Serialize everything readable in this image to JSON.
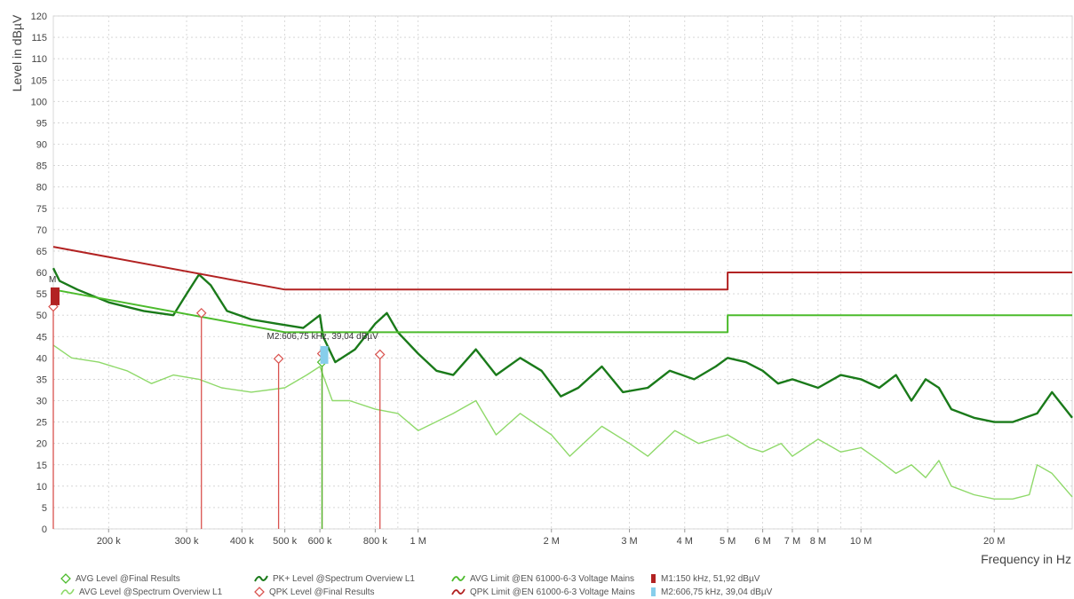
{
  "chart_data": {
    "type": "line",
    "x_scale": "log",
    "xlim": [
      150000,
      30000000
    ],
    "ylim": [
      0,
      120
    ],
    "xlabel": "Frequency in Hz",
    "ylabel": "Level in dBµV",
    "y_ticks": [
      0,
      5,
      10,
      15,
      20,
      25,
      30,
      35,
      40,
      45,
      50,
      55,
      60,
      65,
      70,
      75,
      80,
      85,
      90,
      95,
      100,
      105,
      110,
      115,
      120
    ],
    "x_ticks": [
      {
        "value": 200000,
        "label": "200 k"
      },
      {
        "value": 300000,
        "label": "300 k"
      },
      {
        "value": 400000,
        "label": "400 k"
      },
      {
        "value": 500000,
        "label": "500 k"
      },
      {
        "value": 600000,
        "label": "600 k"
      },
      {
        "value": 800000,
        "label": "800 k"
      },
      {
        "value": 1000000,
        "label": "1 M"
      },
      {
        "value": 2000000,
        "label": "2 M"
      },
      {
        "value": 3000000,
        "label": "3 M"
      },
      {
        "value": 4000000,
        "label": "4 M"
      },
      {
        "value": 5000000,
        "label": "5 M"
      },
      {
        "value": 6000000,
        "label": "6 M"
      },
      {
        "value": 7000000,
        "label": "7 M"
      },
      {
        "value": 8000000,
        "label": "8 M"
      },
      {
        "value": 10000000,
        "label": "10 M"
      },
      {
        "value": 20000000,
        "label": "20 M"
      }
    ],
    "grid": true,
    "legend_position": "bottom",
    "series": [
      {
        "name": "QPK Limit @EN 61000-6-3 Voltage Mains",
        "color": "#b22222",
        "x": [
          150000,
          500000,
          500000,
          5000000,
          5000000,
          30000000
        ],
        "y": [
          66,
          56,
          56,
          56,
          60,
          60
        ]
      },
      {
        "name": "AVG Limit @EN 61000-6-3 Voltage Mains",
        "color": "#4cbb2c",
        "x": [
          150000,
          500000,
          500000,
          5000000,
          5000000,
          30000000
        ],
        "y": [
          56,
          46,
          46,
          46,
          50,
          50
        ]
      },
      {
        "name": "PK+ Level @Spectrum Overview L1",
        "color": "#1a7a1a",
        "x": [
          150000,
          155000,
          170000,
          200000,
          240000,
          280000,
          300000,
          320000,
          340000,
          370000,
          420000,
          480000,
          550000,
          600000,
          610000,
          650000,
          720000,
          800000,
          850000,
          900000,
          1000000,
          1100000,
          1200000,
          1350000,
          1500000,
          1700000,
          1900000,
          2100000,
          2300000,
          2600000,
          2900000,
          3300000,
          3700000,
          4200000,
          4700000,
          5000000,
          5500000,
          6000000,
          6500000,
          7000000,
          8000000,
          9000000,
          10000000,
          11000000,
          12000000,
          13000000,
          14000000,
          15000000,
          16000000,
          18000000,
          20000000,
          22000000,
          25000000,
          27000000,
          30000000
        ],
        "y": [
          61,
          58,
          56,
          53,
          51,
          50,
          55,
          59.5,
          57,
          51,
          49,
          48,
          47,
          50,
          45,
          39,
          42,
          48,
          50.5,
          46,
          41,
          37,
          36,
          42,
          36,
          40,
          37,
          31,
          33,
          38,
          32,
          33,
          37,
          35,
          38,
          40,
          39,
          37,
          34,
          35,
          33,
          36,
          35,
          33,
          36,
          30,
          35,
          33,
          28,
          26,
          25,
          25,
          27,
          32,
          26
        ]
      },
      {
        "name": "AVG Level @Spectrum Overview L1",
        "color": "#8fd96a",
        "x": [
          150000,
          165000,
          190000,
          220000,
          250000,
          280000,
          320000,
          360000,
          420000,
          500000,
          560000,
          600000,
          640000,
          700000,
          800000,
          900000,
          1000000,
          1200000,
          1350000,
          1500000,
          1700000,
          2000000,
          2200000,
          2600000,
          3000000,
          3300000,
          3800000,
          4300000,
          5000000,
          5600000,
          6000000,
          6600000,
          7000000,
          8000000,
          9000000,
          10000000,
          11000000,
          12000000,
          13000000,
          14000000,
          15000000,
          16000000,
          18000000,
          20000000,
          22000000,
          24000000,
          25000000,
          27000000,
          30000000
        ],
        "y": [
          43,
          40,
          39,
          37,
          34,
          36,
          35,
          33,
          32,
          33,
          36,
          38,
          30,
          30,
          28,
          27,
          23,
          27,
          30,
          22,
          27,
          22,
          17,
          24,
          20,
          17,
          23,
          20,
          22,
          19,
          18,
          20,
          17,
          21,
          18,
          19,
          16,
          13,
          15,
          12,
          16,
          10,
          8,
          7,
          7,
          8,
          15,
          13,
          7.5
        ]
      }
    ],
    "points": [
      {
        "name": "QPK Level @Final Results",
        "color": "#d9534f",
        "x": [
          150000,
          324000,
          484000,
          606750,
          820000
        ],
        "y": [
          52,
          50.5,
          39.8,
          41,
          40.8
        ]
      },
      {
        "name": "AVG Level @Final Results",
        "color": "#4cbb2c",
        "x": [
          606750
        ],
        "y": [
          39
        ]
      }
    ],
    "markers": [
      {
        "id": "M1",
        "label": "M1:150 kHz, 51,92 dBµV",
        "x": 150000,
        "y": 51.92,
        "color": "#b22222",
        "tag": "M"
      },
      {
        "id": "M2",
        "label": "M2:606,75 kHz, 39,04 dBµV",
        "x": 606750,
        "y": 39.04,
        "color": "#87ceeb",
        "tag": "M2:606,75 kHz, 39,04 dBµV"
      }
    ]
  },
  "legend": [
    {
      "key": "avg_final",
      "label": "AVG Level @Final Results",
      "symbol": "diamond",
      "color": "#4cbb2c"
    },
    {
      "key": "avg_spec",
      "label": "AVG Level @Spectrum Overview L1",
      "symbol": "line",
      "color": "#8fd96a"
    },
    {
      "key": "pk_spec",
      "label": "PK+ Level @Spectrum Overview L1",
      "symbol": "line",
      "color": "#1a7a1a"
    },
    {
      "key": "qpk_final",
      "label": "QPK Level @Final Results",
      "symbol": "diamond",
      "color": "#d9534f"
    },
    {
      "key": "avg_limit",
      "label": "AVG Limit @EN 61000-6-3 Voltage Mains",
      "symbol": "line",
      "color": "#4cbb2c"
    },
    {
      "key": "qpk_limit",
      "label": "QPK Limit @EN 61000-6-3 Voltage Mains",
      "symbol": "line",
      "color": "#b22222"
    },
    {
      "key": "m1",
      "label": "M1:150 kHz, 51,92 dBµV",
      "symbol": "block",
      "color": "#b22222"
    },
    {
      "key": "m2",
      "label": "M2:606,75 kHz, 39,04 dBµV",
      "symbol": "block",
      "color": "#87ceeb"
    }
  ]
}
